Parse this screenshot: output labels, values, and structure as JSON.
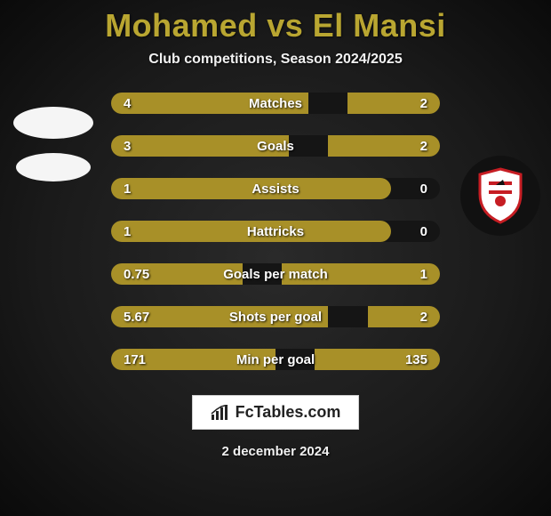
{
  "title": "Mohamed vs El Mansi",
  "subtitle": "Club competitions, Season 2024/2025",
  "brand": "FcTables.com",
  "date": "2 december 2024",
  "colors": {
    "accent": "#b9a631",
    "bar_left": "#a89028",
    "bar_right": "#a89028",
    "bg_track": "#151515",
    "text": "#ffffff"
  },
  "rows": [
    {
      "label": "Matches",
      "left": "4",
      "right": "2",
      "left_pct": 60,
      "right_pct": 28
    },
    {
      "label": "Goals",
      "left": "3",
      "right": "2",
      "left_pct": 54,
      "right_pct": 34
    },
    {
      "label": "Assists",
      "left": "1",
      "right": "0",
      "left_pct": 85,
      "right_pct": 0
    },
    {
      "label": "Hattricks",
      "left": "1",
      "right": "0",
      "left_pct": 85,
      "right_pct": 0
    },
    {
      "label": "Goals per match",
      "left": "0.75",
      "right": "1",
      "left_pct": 40,
      "right_pct": 48
    },
    {
      "label": "Shots per goal",
      "left": "5.67",
      "right": "2",
      "left_pct": 66,
      "right_pct": 22
    },
    {
      "label": "Min per goal",
      "left": "171",
      "right": "135",
      "left_pct": 50,
      "right_pct": 38
    }
  ]
}
